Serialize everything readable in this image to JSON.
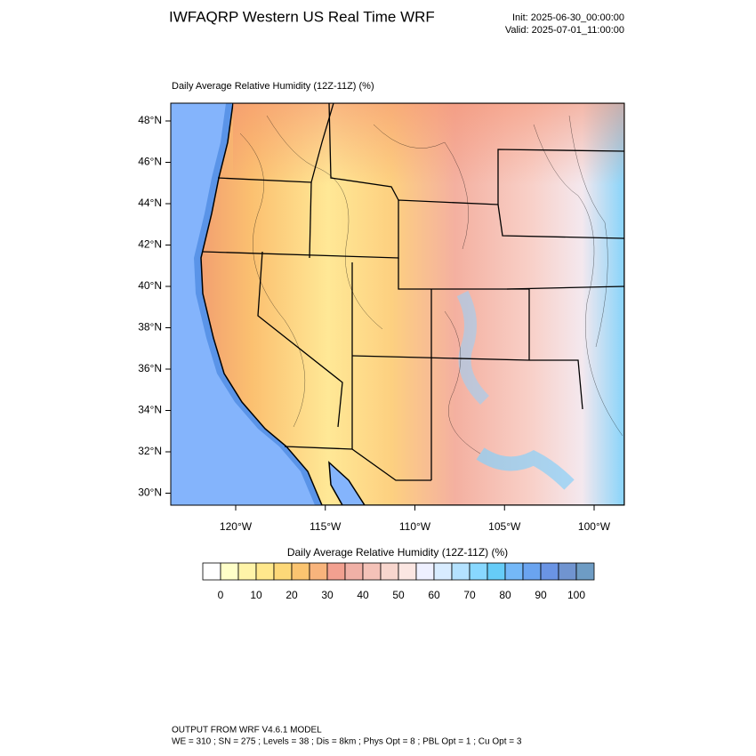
{
  "header": {
    "title": "IWFAQRP Western US Real Time WRF",
    "init": "Init: 2025-06-30_00:00:00",
    "valid": "Valid: 2025-07-01_11:00:00"
  },
  "plot": {
    "title": "Daily Average Relative Humidity (12Z-11Z)   (%)",
    "lat_labels": [
      "48°N",
      "46°N",
      "44°N",
      "42°N",
      "40°N",
      "38°N",
      "36°N",
      "34°N",
      "32°N",
      "30°N"
    ],
    "lon_labels": [
      "120°W",
      "115°W",
      "110°W",
      "105°W",
      "100°W"
    ]
  },
  "colorbar": {
    "title": "Daily Average Relative Humidity (12Z-11Z)  (%)",
    "labels": [
      0,
      10,
      20,
      30,
      40,
      50,
      60,
      70,
      80,
      90,
      100
    ],
    "colors": [
      "#ffffff",
      "#ffffc8",
      "#fff4a8",
      "#ffe88c",
      "#fdd878",
      "#fbc470",
      "#f8b47c",
      "#f2a090",
      "#f0b0a6",
      "#f4c2b8",
      "#f8d6ce",
      "#fbe6e2",
      "#eef0ff",
      "#d8ecff",
      "#b4e2ff",
      "#88d8ff",
      "#66ccf8",
      "#74b8f8",
      "#6aa4f0",
      "#6a94e4",
      "#7094d0",
      "#6e9cc4"
    ]
  },
  "footer": {
    "line1": "OUTPUT FROM WRF V4.6.1 MODEL",
    "line2": "WE = 310 ; SN = 275 ; Levels = 38 ; Dis = 8km ; Phys Opt = 8 ; PBL Opt = 1 ; Cu Opt = 3"
  }
}
